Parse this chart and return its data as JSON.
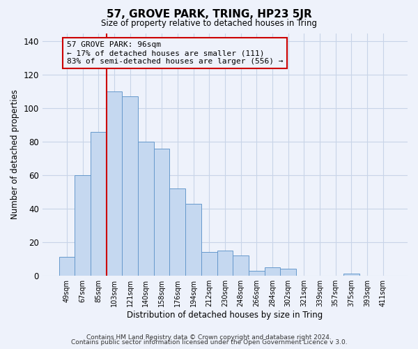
{
  "title": "57, GROVE PARK, TRING, HP23 5JR",
  "subtitle": "Size of property relative to detached houses in Tring",
  "xlabel": "Distribution of detached houses by size in Tring",
  "ylabel": "Number of detached properties",
  "bar_labels": [
    "49sqm",
    "67sqm",
    "85sqm",
    "103sqm",
    "121sqm",
    "140sqm",
    "158sqm",
    "176sqm",
    "194sqm",
    "212sqm",
    "230sqm",
    "248sqm",
    "266sqm",
    "284sqm",
    "302sqm",
    "321sqm",
    "339sqm",
    "357sqm",
    "375sqm",
    "393sqm",
    "411sqm"
  ],
  "bar_values": [
    11,
    60,
    86,
    110,
    107,
    80,
    76,
    52,
    43,
    14,
    15,
    12,
    3,
    5,
    4,
    0,
    0,
    0,
    1,
    0,
    0
  ],
  "bar_color": "#c5d8f0",
  "bar_edge_color": "#6699cc",
  "vline_x": 2.5,
  "vline_color": "#cc0000",
  "annotation_text": "57 GROVE PARK: 96sqm\n← 17% of detached houses are smaller (111)\n83% of semi-detached houses are larger (556) →",
  "annotation_box_edgecolor": "#cc0000",
  "ylim": [
    0,
    145
  ],
  "yticks": [
    0,
    20,
    40,
    60,
    80,
    100,
    120,
    140
  ],
  "footer1": "Contains HM Land Registry data © Crown copyright and database right 2024.",
  "footer2": "Contains public sector information licensed under the Open Government Licence v 3.0.",
  "bg_color": "#eef2fb",
  "grid_color": "#c8d4e8"
}
